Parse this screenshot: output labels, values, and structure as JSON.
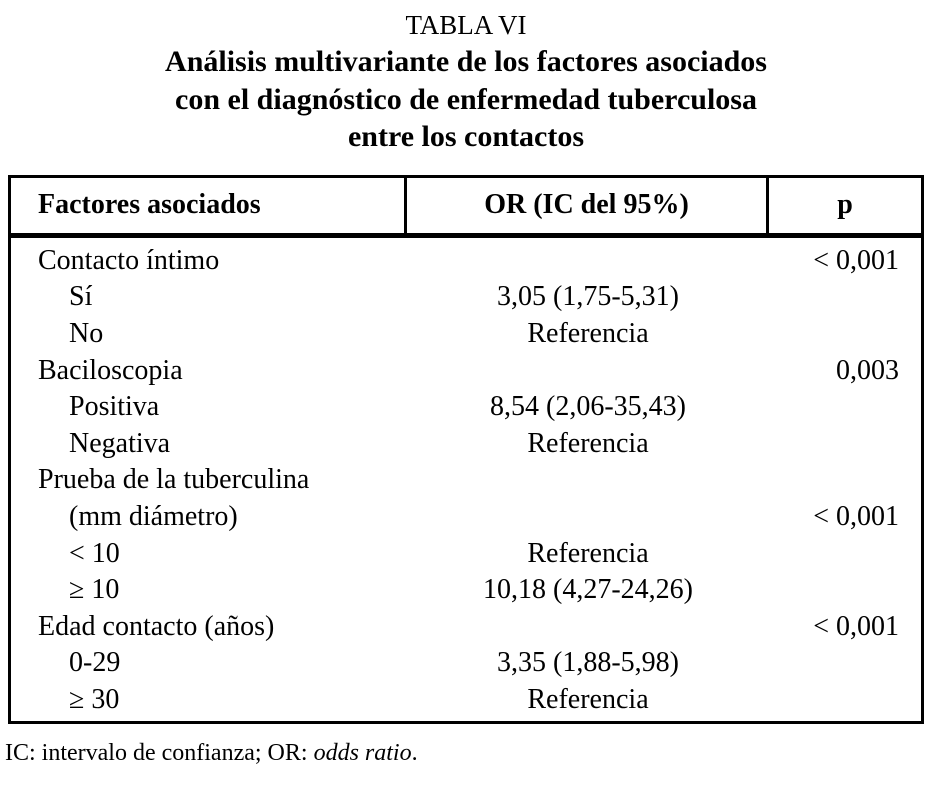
{
  "title": {
    "label": "TABLA VI",
    "lines": [
      "Análisis multivariante de los factores asociados",
      "con el diagnóstico de enfermedad tuberculosa",
      "entre los contactos"
    ]
  },
  "table": {
    "headers": {
      "factors": "Factores asociados",
      "or": "OR (IC del 95%)",
      "p": "p"
    },
    "rows": [
      {
        "label": "Contacto íntimo",
        "or": "",
        "p": "< 0,001",
        "indent": false
      },
      {
        "label": "Sí",
        "or": "3,05 (1,75-5,31)",
        "p": "",
        "indent": true
      },
      {
        "label": "No",
        "or": "Referencia",
        "p": "",
        "indent": true
      },
      {
        "label": "Baciloscopia",
        "or": "",
        "p": "0,003",
        "indent": false
      },
      {
        "label": "Positiva",
        "or": "8,54 (2,06-35,43)",
        "p": "",
        "indent": true
      },
      {
        "label": "Negativa",
        "or": "Referencia",
        "p": "",
        "indent": true
      },
      {
        "label": "Prueba de la tuberculina",
        "or": "",
        "p": "",
        "indent": false
      },
      {
        "label": "(mm diámetro)",
        "or": "",
        "p": "< 0,001",
        "indent": true
      },
      {
        "label": "< 10",
        "or": "Referencia",
        "p": "",
        "indent": true
      },
      {
        "label": "≥ 10",
        "or": "10,18 (4,27-24,26)",
        "p": "",
        "indent": true
      },
      {
        "label": "Edad contacto (años)",
        "or": "",
        "p": "< 0,001",
        "indent": false
      },
      {
        "label": "0-29",
        "or": "3,35 (1,88-5,98)",
        "p": "",
        "indent": true
      },
      {
        "label": "≥ 30",
        "or": "Referencia",
        "p": "",
        "indent": true
      }
    ]
  },
  "footnote": {
    "prefix": "IC: intervalo de confianza; OR: ",
    "italic": "odds ratio",
    "suffix": "."
  },
  "colors": {
    "text": "#000000",
    "background": "#ffffff",
    "border": "#000000"
  }
}
